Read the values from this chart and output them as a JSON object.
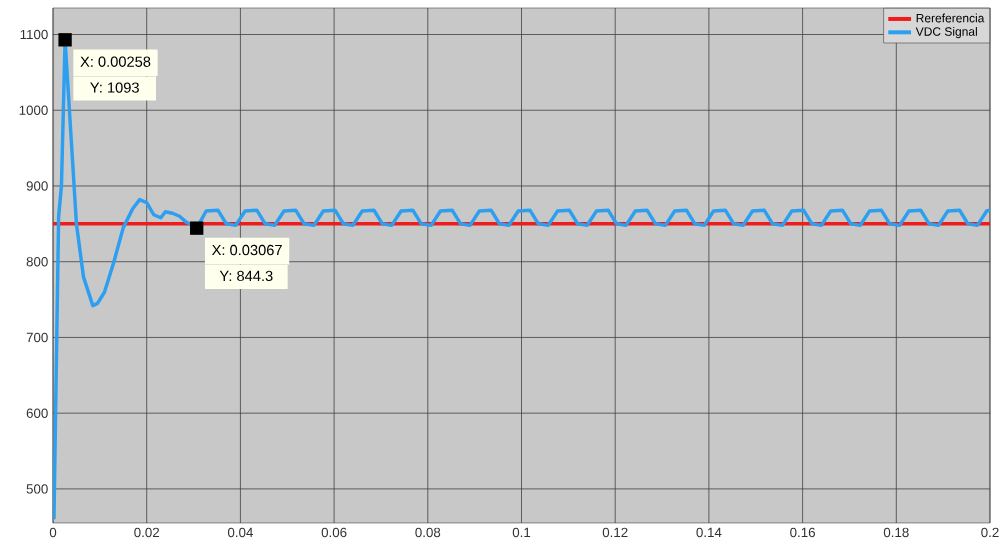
{
  "chart_data": {
    "type": "line",
    "xlim": [
      0,
      0.2
    ],
    "ylim": [
      455,
      1135
    ],
    "xticks": [
      0,
      0.02,
      0.04,
      0.06,
      0.08,
      0.1,
      0.12,
      0.14,
      0.16,
      0.18,
      0.2
    ],
    "yticks": [
      500,
      600,
      700,
      800,
      900,
      1000,
      1100
    ],
    "grid": true,
    "legend": "top right",
    "series": [
      {
        "name": "Rereferencia",
        "color": "#ee1c1c",
        "x": [
          0,
          0.2
        ],
        "values": [
          850,
          850
        ]
      },
      {
        "name": "VDC Signal",
        "color": "#2c9ff0",
        "x": [
          0.0002,
          0.0008,
          0.0012,
          0.0018,
          0.00258,
          0.0035,
          0.005,
          0.0065,
          0.0085,
          0.0095,
          0.011,
          0.013,
          0.015,
          0.017,
          0.0185,
          0.02,
          0.0215,
          0.023,
          0.024,
          0.0255,
          0.027,
          0.0285,
          0.03067,
          0.0327,
          0.0352,
          0.037,
          0.039,
          0.041,
          0.0435,
          0.0453,
          0.0473,
          0.0493,
          0.0518,
          0.0536,
          0.0557,
          0.0577,
          0.0602,
          0.062,
          0.064,
          0.066,
          0.0685,
          0.0703,
          0.0723,
          0.0743,
          0.0768,
          0.0786,
          0.0807,
          0.0827,
          0.0852,
          0.087,
          0.089,
          0.091,
          0.0935,
          0.0953,
          0.0973,
          0.0993,
          0.1018,
          0.1036,
          0.1057,
          0.1077,
          0.1102,
          0.112,
          0.114,
          0.116,
          0.1185,
          0.1203,
          0.1223,
          0.1243,
          0.1268,
          0.1286,
          0.1307,
          0.1327,
          0.1352,
          0.137,
          0.139,
          0.141,
          0.1435,
          0.1453,
          0.1473,
          0.1493,
          0.1518,
          0.1536,
          0.1557,
          0.1577,
          0.1602,
          0.162,
          0.164,
          0.166,
          0.1685,
          0.1703,
          0.1723,
          0.1743,
          0.1768,
          0.1786,
          0.1807,
          0.1827,
          0.1852,
          0.187,
          0.189,
          0.191,
          0.1935,
          0.1953,
          0.1973,
          0.1993,
          0.2
        ],
        "values": [
          460,
          700,
          860,
          900,
          1093,
          1000,
          850,
          780,
          742,
          745,
          760,
          800,
          845,
          870,
          882,
          878,
          862,
          858,
          866,
          864,
          860,
          852,
          844.3,
          867,
          868,
          850,
          848,
          867,
          868,
          850,
          848,
          867,
          868,
          850,
          848,
          867,
          868,
          850,
          848,
          867,
          868,
          850,
          848,
          867,
          868,
          850,
          848,
          867,
          868,
          850,
          848,
          867,
          868,
          850,
          848,
          867,
          868,
          850,
          848,
          867,
          868,
          850,
          848,
          867,
          868,
          850,
          848,
          867,
          868,
          850,
          848,
          867,
          868,
          850,
          848,
          867,
          868,
          850,
          848,
          867,
          868,
          850,
          848,
          867,
          868,
          850,
          848,
          867,
          868,
          850,
          848,
          867,
          868,
          850,
          848,
          867,
          868,
          850,
          848,
          867,
          868,
          850,
          848,
          867,
          868
        ]
      }
    ],
    "annotations": [
      {
        "text": "X: 0.00258",
        "x": 0.00258,
        "y": 1093
      },
      "Y: 1093",
      {
        "text": "X: 0.03067",
        "x": 0.03067,
        "y": 844.3
      },
      "Y: 844.3"
    ]
  }
}
